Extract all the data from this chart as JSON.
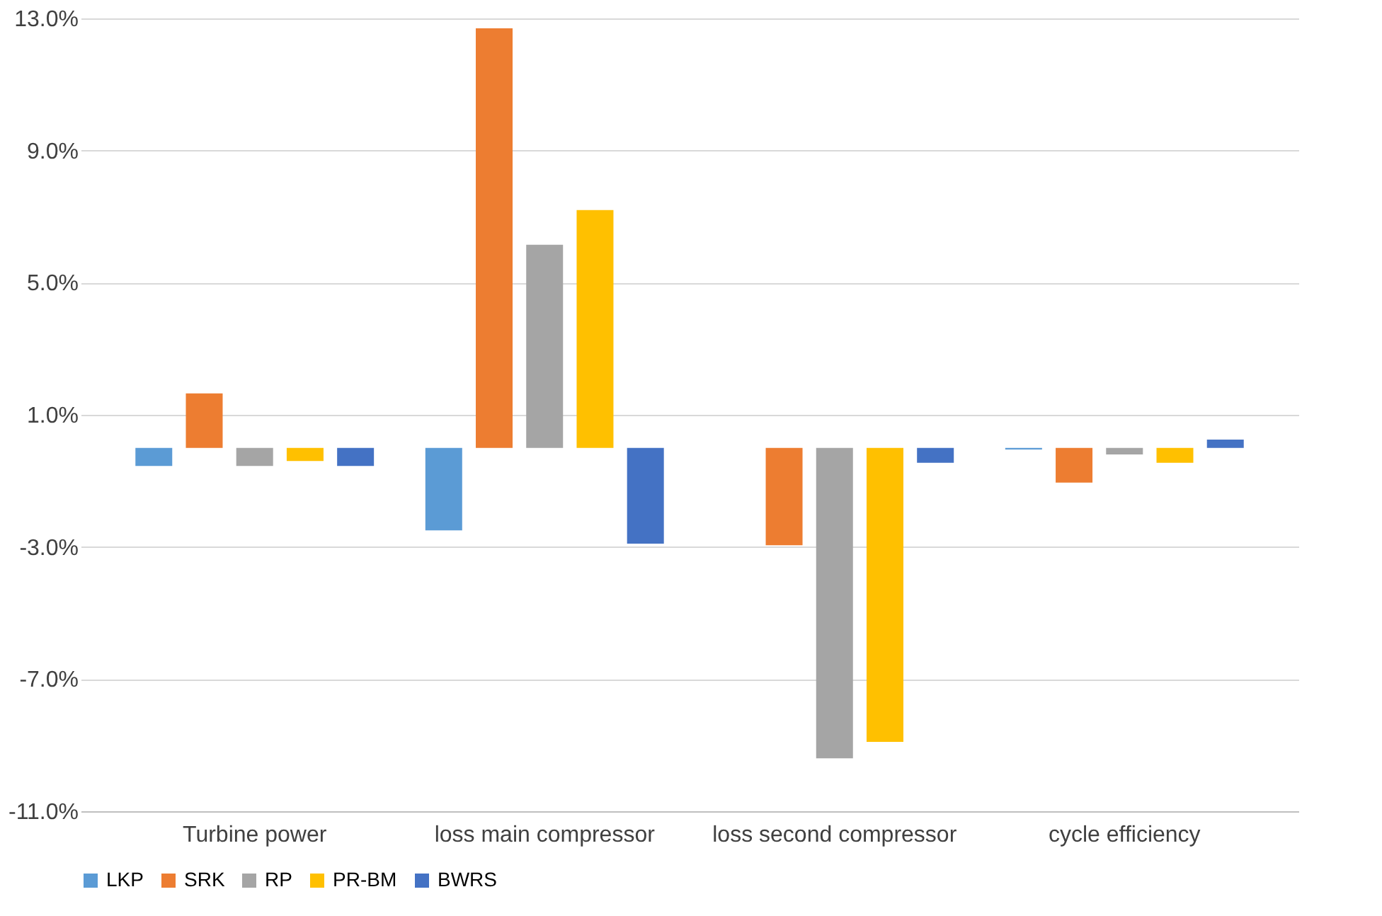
{
  "chart_data": {
    "type": "bar",
    "categories": [
      "Turbine power",
      "loss main compressor",
      "loss second compressor",
      "cycle efficiency"
    ],
    "series": [
      {
        "name": "LKP",
        "color": "#5b9bd5",
        "values": [
          -0.55,
          -2.5,
          0,
          -0.05
        ]
      },
      {
        "name": "SRK",
        "color": "#ed7d31",
        "values": [
          1.65,
          12.7,
          -2.95,
          -1.05
        ]
      },
      {
        "name": "RP",
        "color": "#a5a5a5",
        "values": [
          -0.55,
          6.15,
          -9.4,
          -0.2
        ]
      },
      {
        "name": "PR-BM",
        "color": "#ffc000",
        "values": [
          -0.4,
          7.2,
          -8.9,
          -0.45
        ]
      },
      {
        "name": "BWRS",
        "color": "#4472c4",
        "values": [
          -0.55,
          -2.9,
          -0.45,
          0.25
        ]
      }
    ],
    "ylim": [
      -11,
      13
    ],
    "yticks": [
      {
        "value": -11,
        "label": "-11.0%"
      },
      {
        "value": -7,
        "label": "-7.0%"
      },
      {
        "value": -3,
        "label": "-3.0%"
      },
      {
        "value": 1,
        "label": "1.0%"
      },
      {
        "value": 5,
        "label": "5.0%"
      },
      {
        "value": 9,
        "label": "9.0%"
      },
      {
        "value": 13,
        "label": "13.0%"
      }
    ],
    "grid": true,
    "legend": "bottom"
  }
}
